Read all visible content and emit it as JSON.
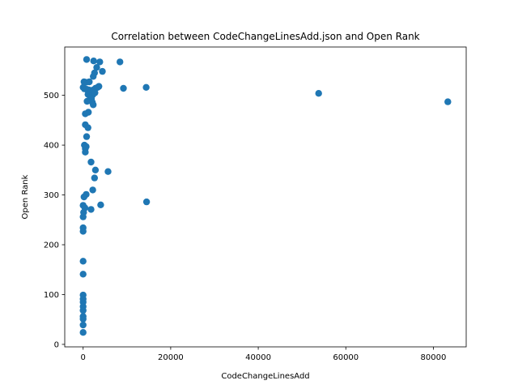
{
  "chart_data": {
    "type": "scatter",
    "title": "Correlation between CodeChangeLinesAdd.json and Open Rank",
    "xlabel": "CodeChangeLinesAdd",
    "ylabel": "Open Rank",
    "xlim": [
      -4200,
      87500
    ],
    "ylim": [
      -5,
      597
    ],
    "xticks": [
      0,
      20000,
      40000,
      60000,
      80000
    ],
    "yticks": [
      0,
      100,
      200,
      300,
      400,
      500
    ],
    "grid": false,
    "legend": "none",
    "marker_color": "#1f77b4",
    "points": [
      {
        "x": 800,
        "y": 572
      },
      {
        "x": 2400,
        "y": 569
      },
      {
        "x": 3800,
        "y": 567
      },
      {
        "x": 8400,
        "y": 567
      },
      {
        "x": 3100,
        "y": 556
      },
      {
        "x": 4400,
        "y": 548
      },
      {
        "x": 2600,
        "y": 545
      },
      {
        "x": 2300,
        "y": 538
      },
      {
        "x": 200,
        "y": 527
      },
      {
        "x": 600,
        "y": 526
      },
      {
        "x": 1400,
        "y": 527
      },
      {
        "x": 0,
        "y": 516
      },
      {
        "x": 300,
        "y": 513
      },
      {
        "x": 800,
        "y": 512
      },
      {
        "x": 1300,
        "y": 511
      },
      {
        "x": 1800,
        "y": 508
      },
      {
        "x": 2300,
        "y": 511
      },
      {
        "x": 2800,
        "y": 514
      },
      {
        "x": 3300,
        "y": 516
      },
      {
        "x": 3600,
        "y": 518
      },
      {
        "x": 9200,
        "y": 514
      },
      {
        "x": 14400,
        "y": 516
      },
      {
        "x": 1100,
        "y": 502
      },
      {
        "x": 1600,
        "y": 498
      },
      {
        "x": 2200,
        "y": 501
      },
      {
        "x": 2700,
        "y": 505
      },
      {
        "x": 1900,
        "y": 493
      },
      {
        "x": 2100,
        "y": 486
      },
      {
        "x": 900,
        "y": 488
      },
      {
        "x": 2300,
        "y": 481
      },
      {
        "x": 53800,
        "y": 504
      },
      {
        "x": 83300,
        "y": 487
      },
      {
        "x": 1200,
        "y": 466
      },
      {
        "x": 500,
        "y": 463
      },
      {
        "x": 500,
        "y": 441
      },
      {
        "x": 1100,
        "y": 435
      },
      {
        "x": 800,
        "y": 417
      },
      {
        "x": 300,
        "y": 400
      },
      {
        "x": 700,
        "y": 397
      },
      {
        "x": 500,
        "y": 393
      },
      {
        "x": 500,
        "y": 386
      },
      {
        "x": 1800,
        "y": 366
      },
      {
        "x": 2800,
        "y": 350
      },
      {
        "x": 5700,
        "y": 347
      },
      {
        "x": 2600,
        "y": 334
      },
      {
        "x": 2200,
        "y": 310
      },
      {
        "x": 700,
        "y": 301
      },
      {
        "x": 200,
        "y": 296
      },
      {
        "x": 14500,
        "y": 286
      },
      {
        "x": 4000,
        "y": 280
      },
      {
        "x": 0,
        "y": 279
      },
      {
        "x": 400,
        "y": 274
      },
      {
        "x": 1800,
        "y": 271
      },
      {
        "x": 100,
        "y": 265
      },
      {
        "x": 0,
        "y": 256
      },
      {
        "x": 0,
        "y": 234
      },
      {
        "x": 0,
        "y": 227
      },
      {
        "x": 0,
        "y": 167
      },
      {
        "x": 0,
        "y": 141
      },
      {
        "x": 0,
        "y": 99
      },
      {
        "x": 0,
        "y": 91
      },
      {
        "x": 0,
        "y": 85
      },
      {
        "x": 0,
        "y": 76
      },
      {
        "x": 0,
        "y": 68
      },
      {
        "x": 0,
        "y": 56
      },
      {
        "x": 0,
        "y": 51
      },
      {
        "x": 0,
        "y": 39
      },
      {
        "x": 0,
        "y": 24
      }
    ]
  }
}
